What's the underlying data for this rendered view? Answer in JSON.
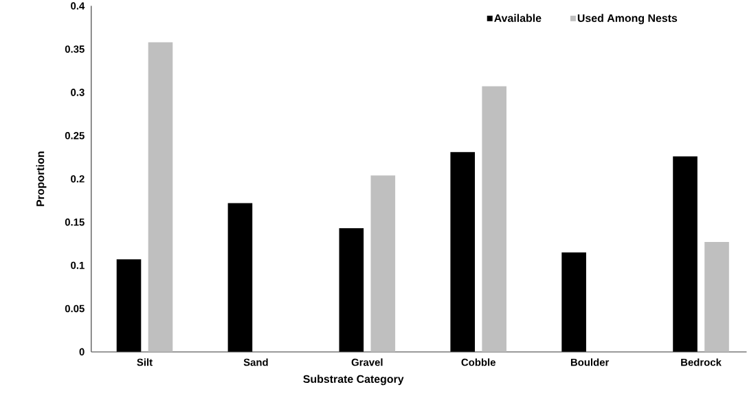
{
  "chart_data": {
    "type": "bar",
    "xlabel": "Substrate Category",
    "ylabel": "Proportion",
    "categories": [
      "Silt",
      "Sand",
      "Gravel",
      "Cobble",
      "Boulder",
      "Bedrock"
    ],
    "series": [
      {
        "name": "Available",
        "color": "#000000",
        "values": [
          0.107,
          0.172,
          0.143,
          0.231,
          0.115,
          0.226
        ]
      },
      {
        "name": "Used Among Nests",
        "color": "#bfbfbf",
        "values": [
          0.358,
          0,
          0.204,
          0.307,
          0,
          0.127
        ]
      }
    ],
    "ylim": [
      0,
      0.4
    ],
    "yticks": [
      0,
      0.05,
      0.1,
      0.15,
      0.2,
      0.25,
      0.3,
      0.35,
      0.4
    ],
    "grid": false,
    "legend": "top right"
  }
}
